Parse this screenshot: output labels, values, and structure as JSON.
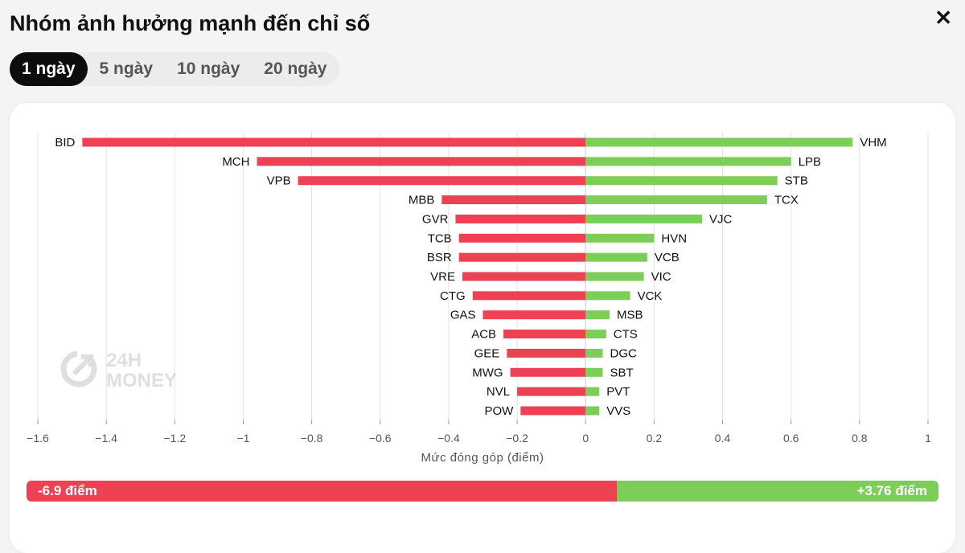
{
  "header": {
    "title": "Nhóm ảnh hưởng mạnh đến chỉ số",
    "close": "✕"
  },
  "tabs": [
    {
      "label": "1 ngày",
      "active": true
    },
    {
      "label": "5 ngày",
      "active": false
    },
    {
      "label": "10 ngày",
      "active": false
    },
    {
      "label": "20 ngày",
      "active": false
    }
  ],
  "watermark": {
    "line1": "24H",
    "line2": "MONEY"
  },
  "chart_data": {
    "type": "bar",
    "orientation": "horizontal",
    "xlabel": "Mức đóng góp (điểm)",
    "xlim": [
      -1.6,
      1
    ],
    "xticks": [
      "−1.6",
      "−1.4",
      "−1.2",
      "−1",
      "−0.8",
      "−0.6",
      "−0.4",
      "−0.2",
      "0",
      "0.2",
      "0.4",
      "0.6",
      "0.8",
      "1"
    ],
    "xtick_values": [
      -1.6,
      -1.4,
      -1.2,
      -1,
      -0.8,
      -0.6,
      -0.4,
      -0.2,
      0,
      0.2,
      0.4,
      0.6,
      0.8,
      1
    ],
    "grid": true,
    "negative_color": "#ee4153",
    "positive_color": "#7cce58",
    "negative": {
      "categories": [
        "BID",
        "MCH",
        "VPB",
        "MBB",
        "GVR",
        "TCB",
        "BSR",
        "VRE",
        "CTG",
        "GAS",
        "ACB",
        "GEE",
        "MWG",
        "NVL",
        "POW"
      ],
      "values": [
        -1.47,
        -0.96,
        -0.84,
        -0.42,
        -0.38,
        -0.37,
        -0.37,
        -0.36,
        -0.33,
        -0.3,
        -0.24,
        -0.23,
        -0.22,
        -0.2,
        -0.19
      ]
    },
    "positive": {
      "categories": [
        "VHM",
        "LPB",
        "STB",
        "TCX",
        "VJC",
        "HVN",
        "VCB",
        "VIC",
        "VCK",
        "MSB",
        "CTS",
        "DGC",
        "SBT",
        "PVT",
        "VVS"
      ],
      "values": [
        0.78,
        0.6,
        0.56,
        0.53,
        0.34,
        0.2,
        0.18,
        0.17,
        0.13,
        0.07,
        0.06,
        0.05,
        0.05,
        0.04,
        0.04
      ]
    }
  },
  "summary": {
    "negative_label": "-6.9 điểm",
    "positive_label": "+3.76 điểm",
    "negative_value": -6.9,
    "positive_value": 3.76
  }
}
